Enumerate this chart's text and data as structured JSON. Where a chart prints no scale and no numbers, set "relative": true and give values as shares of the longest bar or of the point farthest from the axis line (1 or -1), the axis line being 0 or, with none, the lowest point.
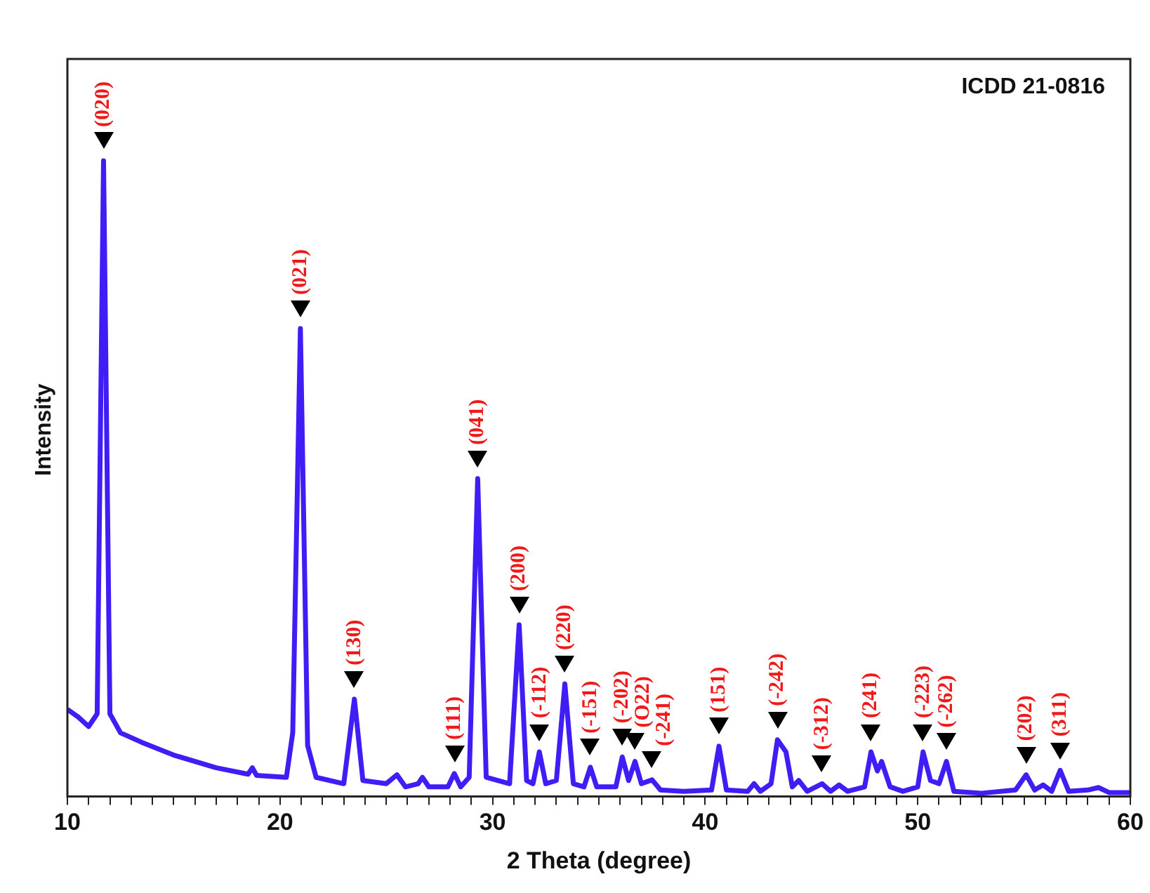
{
  "chart_data": {
    "type": "line",
    "relative": true,
    "xlabel": "2 Theta (degree)",
    "ylabel": "Intensity",
    "legend": false,
    "grid": false,
    "marker": "none",
    "tick_labels": "x",
    "xlim": [
      10,
      60
    ],
    "xticks": [
      10,
      {
        "value": 11,
        "label": null
      },
      {
        "value": 12,
        "label": null
      },
      {
        "value": 13,
        "label": null
      },
      {
        "value": 14,
        "label": null
      },
      {
        "value": 15,
        "label": null
      },
      {
        "value": 16,
        "label": null
      },
      {
        "value": 17,
        "label": null
      },
      {
        "value": 18,
        "label": null
      },
      {
        "value": 19,
        "label": null
      },
      20,
      {
        "value": 21,
        "label": null
      },
      {
        "value": 22,
        "label": null
      },
      {
        "value": 23,
        "label": null
      },
      {
        "value": 24,
        "label": null
      },
      {
        "value": 25,
        "label": null
      },
      {
        "value": 26,
        "label": null
      },
      {
        "value": 27,
        "label": null
      },
      {
        "value": 28,
        "label": null
      },
      {
        "value": 29,
        "label": null
      },
      30,
      {
        "value": 31,
        "label": null
      },
      {
        "value": 32,
        "label": null
      },
      {
        "value": 33,
        "label": null
      },
      {
        "value": 34,
        "label": null
      },
      {
        "value": 35,
        "label": null
      },
      {
        "value": 36,
        "label": null
      },
      {
        "value": 37,
        "label": null
      },
      {
        "value": 38,
        "label": null
      },
      {
        "value": 39,
        "label": null
      },
      40,
      {
        "value": 41,
        "label": null
      },
      {
        "value": 42,
        "label": null
      },
      {
        "value": 43,
        "label": null
      },
      {
        "value": 44,
        "label": null
      },
      {
        "value": 45,
        "label": null
      },
      {
        "value": 46,
        "label": null
      },
      {
        "value": 47,
        "label": null
      },
      {
        "value": 48,
        "label": null
      },
      {
        "value": 49,
        "label": null
      },
      50,
      {
        "value": 51,
        "label": null
      },
      {
        "value": 52,
        "label": null
      },
      {
        "value": 53,
        "label": null
      },
      {
        "value": 54,
        "label": null
      },
      {
        "value": 55,
        "label": null
      },
      {
        "value": 56,
        "label": null
      },
      {
        "value": 57,
        "label": null
      },
      {
        "value": 58,
        "label": null
      },
      {
        "value": 59,
        "label": null
      },
      60
    ],
    "series": [
      {
        "color": "#3f1ef5",
        "x": [
          10,
          10.5,
          11.0,
          11.4,
          11.7,
          12.0,
          12.5,
          13.5,
          15,
          17,
          18.5,
          18.7,
          18.9,
          20.3,
          20.6,
          20.96,
          21.3,
          21.7,
          23.0,
          23.5,
          23.9,
          25.0,
          25.5,
          25.9,
          26.5,
          26.7,
          27.0,
          27.9,
          28.2,
          28.5,
          28.9,
          29.3,
          29.7,
          30.8,
          31.25,
          31.6,
          31.9,
          32.2,
          32.5,
          33.0,
          33.4,
          33.8,
          34.3,
          34.6,
          34.9,
          35.8,
          36.1,
          36.4,
          36.7,
          37.0,
          37.5,
          37.9,
          39,
          40.3,
          40.65,
          41.0,
          42.0,
          42.3,
          42.6,
          43.1,
          43.4,
          43.8,
          44.1,
          44.4,
          44.8,
          45.5,
          45.9,
          46.3,
          46.7,
          47.5,
          47.8,
          48.1,
          48.3,
          48.7,
          49.3,
          50.0,
          50.25,
          50.6,
          51.0,
          51.35,
          51.7,
          53,
          54.6,
          55.1,
          55.5,
          55.9,
          56.3,
          56.7,
          57.1,
          58.0,
          58.5,
          59,
          60
        ],
        "values": [
          0.137,
          0.125,
          0.11,
          0.13,
          1.0,
          0.13,
          0.1,
          0.085,
          0.065,
          0.045,
          0.035,
          0.045,
          0.033,
          0.03,
          0.1,
          0.736,
          0.08,
          0.03,
          0.02,
          0.153,
          0.025,
          0.02,
          0.034,
          0.015,
          0.02,
          0.03,
          0.015,
          0.015,
          0.036,
          0.015,
          0.03,
          0.5,
          0.03,
          0.02,
          0.27,
          0.025,
          0.02,
          0.07,
          0.02,
          0.025,
          0.177,
          0.02,
          0.015,
          0.046,
          0.015,
          0.015,
          0.062,
          0.025,
          0.055,
          0.02,
          0.026,
          0.01,
          0.008,
          0.01,
          0.079,
          0.01,
          0.008,
          0.02,
          0.008,
          0.02,
          0.089,
          0.07,
          0.015,
          0.025,
          0.008,
          0.02,
          0.008,
          0.018,
          0.008,
          0.015,
          0.07,
          0.04,
          0.055,
          0.015,
          0.008,
          0.015,
          0.07,
          0.025,
          0.02,
          0.055,
          0.008,
          0.005,
          0.01,
          0.034,
          0.01,
          0.018,
          0.008,
          0.041,
          0.008,
          0.01,
          0.014,
          0.006,
          0.006
        ]
      }
    ],
    "annotations": [
      "ICDD 21-0816",
      {
        "text": "(020)",
        "x": 11.7,
        "y": 1.0
      },
      {
        "text": "(021)",
        "x": 20.96,
        "y": 0.736
      },
      {
        "text": "(130)",
        "x": 23.5,
        "y": 0.153
      },
      {
        "text": "(111)",
        "x": 28.2,
        "y": 0.036
      },
      {
        "text": "(041)",
        "x": 29.3,
        "y": 0.5
      },
      {
        "text": "(200)",
        "x": 31.25,
        "y": 0.27
      },
      {
        "text": "(-112)",
        "x": 32.2,
        "y": 0.07
      },
      {
        "text": "(220)",
        "x": 33.4,
        "y": 0.177
      },
      {
        "text": "(-151)",
        "x": 34.6,
        "y": 0.046
      },
      {
        "text": "(-202)",
        "x": 36.1,
        "y": 0.062
      },
      {
        "text": "(O22)",
        "x": 36.7,
        "y": 0.055
      },
      {
        "text": "(-241)",
        "x": 37.5,
        "y": 0.026
      },
      {
        "text": "(151)",
        "x": 40.65,
        "y": 0.079
      },
      {
        "text": "(-242)",
        "x": 43.4,
        "y": 0.089
      },
      {
        "text": "(-312)",
        "x": 45.5,
        "y": 0.02
      },
      {
        "text": "(241)",
        "x": 47.8,
        "y": 0.07
      },
      {
        "text": "(-223)",
        "x": 50.25,
        "y": 0.07
      },
      {
        "text": "(-262)",
        "x": 51.35,
        "y": 0.055
      },
      {
        "text": "(202)",
        "x": 55.1,
        "y": 0.034
      },
      {
        "text": "(311)",
        "x": 56.7,
        "y": 0.041
      }
    ]
  }
}
